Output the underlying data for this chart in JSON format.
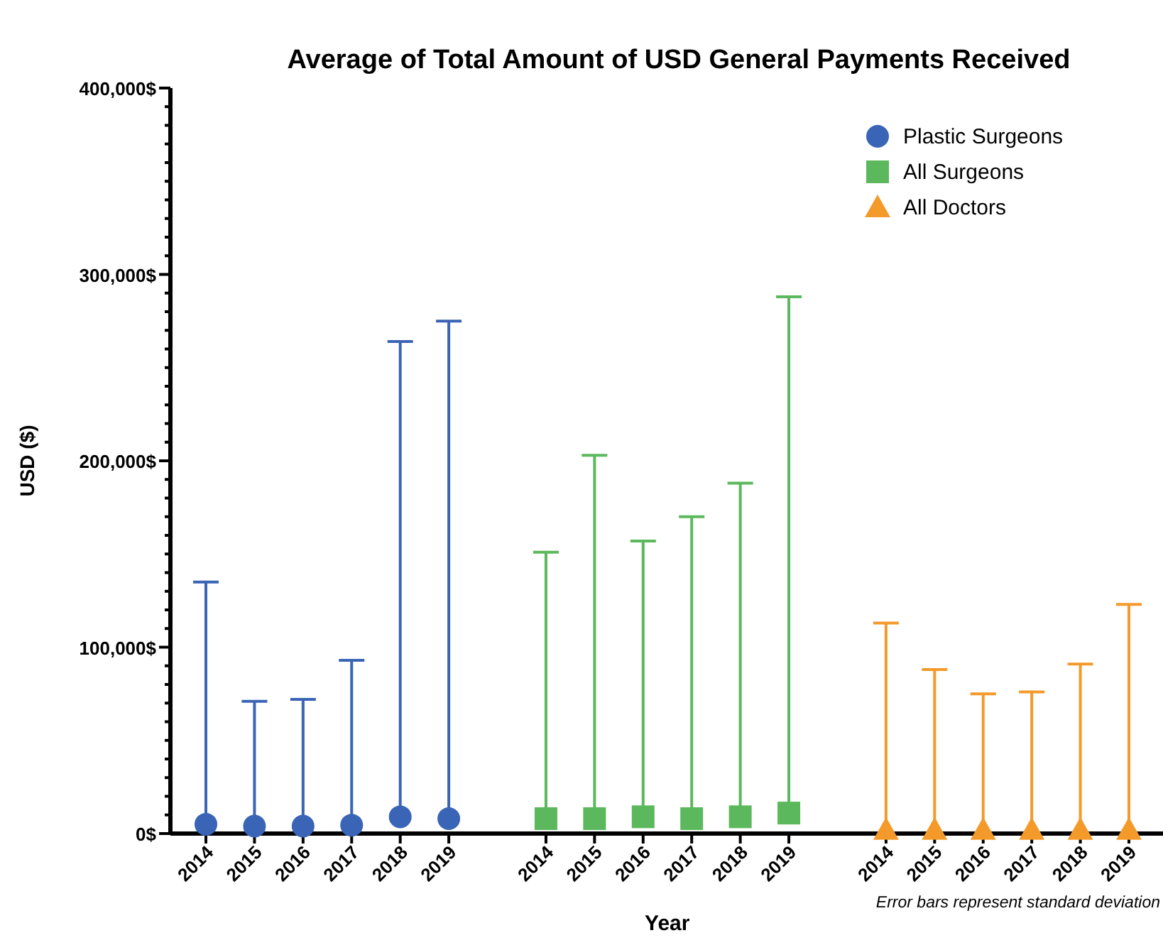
{
  "chart_data": {
    "type": "scatter",
    "title": "Average of Total Amount of USD General Payments Received",
    "xlabel": "Year",
    "ylabel": "USD ($)",
    "categories": [
      "2014",
      "2015",
      "2016",
      "2017",
      "2018",
      "2019",
      null,
      "2014",
      "2015",
      "2016",
      "2017",
      "2018",
      "2019",
      null,
      "2014",
      "2015",
      "2016",
      "2017",
      "2018",
      "2019"
    ],
    "series": [
      {
        "name": "Plastic Surgeons",
        "color": "#3a64b5",
        "marker": "circle",
        "values": [
          5000,
          4000,
          4000,
          4500,
          9000,
          8000,
          null,
          null,
          null,
          null,
          null,
          null,
          null,
          null,
          null,
          null,
          null,
          null,
          null,
          null
        ],
        "errors": [
          [
            5000,
            135000
          ],
          [
            4000,
            71000
          ],
          [
            4000,
            72000
          ],
          [
            4500,
            93000
          ],
          [
            9000,
            264000
          ],
          [
            8000,
            275000
          ],
          null,
          null,
          null,
          null,
          null,
          null,
          null,
          null,
          null,
          null,
          null,
          null,
          null,
          null
        ]
      },
      {
        "name": "All Surgeons",
        "color": "#5cb85c",
        "marker": "square",
        "values": [
          null,
          null,
          null,
          null,
          null,
          null,
          null,
          8000,
          8000,
          9000,
          8000,
          9000,
          11000,
          null,
          null,
          null,
          null,
          null,
          null,
          null
        ],
        "errors": [
          null,
          null,
          null,
          null,
          null,
          null,
          null,
          [
            8000,
            151000
          ],
          [
            8000,
            203000
          ],
          [
            9000,
            157000
          ],
          [
            8000,
            170000
          ],
          [
            9000,
            188000
          ],
          [
            11000,
            288000
          ],
          null,
          null,
          null,
          null,
          null,
          null,
          null
        ]
      },
      {
        "name": "All Doctors",
        "color": "#f39a2b",
        "marker": "triangle",
        "values": [
          null,
          null,
          null,
          null,
          null,
          null,
          null,
          null,
          null,
          null,
          null,
          null,
          null,
          null,
          2000,
          2000,
          2000,
          2000,
          2000,
          2000
        ],
        "errors": [
          null,
          null,
          null,
          null,
          null,
          null,
          null,
          null,
          null,
          null,
          null,
          null,
          null,
          null,
          [
            2000,
            113000
          ],
          [
            2000,
            88000
          ],
          [
            2000,
            75000
          ],
          [
            2000,
            76000
          ],
          [
            2000,
            91000
          ],
          [
            2000,
            123000
          ]
        ]
      }
    ],
    "ylim": [
      0,
      400000
    ],
    "yticks": [
      {
        "value": 0,
        "label": "0$"
      },
      {
        "value": 10000,
        "label": null
      },
      {
        "value": 20000,
        "label": null
      },
      {
        "value": 30000,
        "label": null
      },
      {
        "value": 40000,
        "label": null
      },
      {
        "value": 50000,
        "label": null
      },
      {
        "value": 60000,
        "label": null
      },
      {
        "value": 70000,
        "label": null
      },
      {
        "value": 80000,
        "label": null
      },
      {
        "value": 90000,
        "label": null
      },
      {
        "value": 100000,
        "label": "100,000$"
      },
      {
        "value": 110000,
        "label": null
      },
      {
        "value": 120000,
        "label": null
      },
      {
        "value": 130000,
        "label": null
      },
      {
        "value": 140000,
        "label": null
      },
      {
        "value": 150000,
        "label": null
      },
      {
        "value": 160000,
        "label": null
      },
      {
        "value": 170000,
        "label": null
      },
      {
        "value": 180000,
        "label": null
      },
      {
        "value": 190000,
        "label": null
      },
      {
        "value": 200000,
        "label": "200,000$"
      },
      {
        "value": 210000,
        "label": null
      },
      {
        "value": 220000,
        "label": null
      },
      {
        "value": 230000,
        "label": null
      },
      {
        "value": 240000,
        "label": null
      },
      {
        "value": 250000,
        "label": null
      },
      {
        "value": 260000,
        "label": null
      },
      {
        "value": 270000,
        "label": null
      },
      {
        "value": 280000,
        "label": null
      },
      {
        "value": 290000,
        "label": null
      },
      {
        "value": 300000,
        "label": "300,000$"
      },
      {
        "value": 310000,
        "label": null
      },
      {
        "value": 320000,
        "label": null
      },
      {
        "value": 330000,
        "label": null
      },
      {
        "value": 340000,
        "label": null
      },
      {
        "value": 350000,
        "label": null
      },
      {
        "value": 360000,
        "label": null
      },
      {
        "value": 370000,
        "label": null
      },
      {
        "value": 380000,
        "label": null
      },
      {
        "value": 390000,
        "label": null
      },
      {
        "value": 400000,
        "label": "400,000$"
      }
    ],
    "grid": false,
    "legend": "top right",
    "annotations": [
      "Error bars represent standard deviation"
    ]
  }
}
